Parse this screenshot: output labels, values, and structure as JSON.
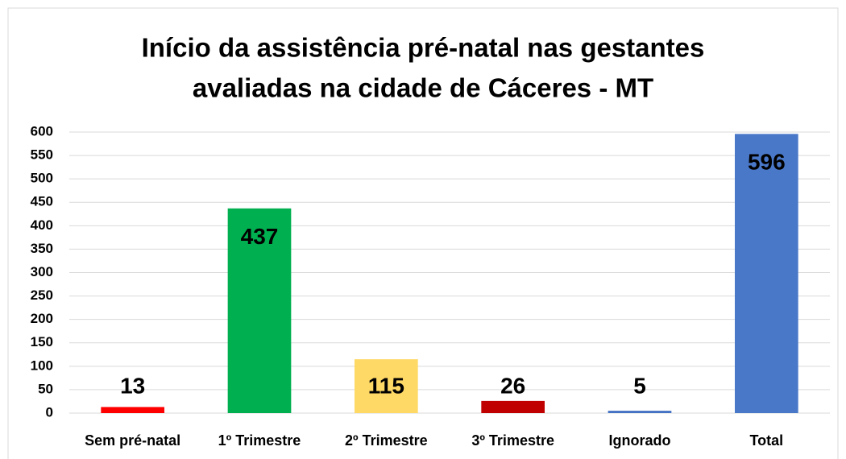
{
  "chart_data": {
    "type": "bar",
    "title": [
      "Início da assistência pré-natal nas gestantes",
      "avaliadas na cidade de Cáceres - MT"
    ],
    "categories": [
      "Sem pré-natal",
      "1º Trimestre",
      "2º Trimestre",
      "3º Trimestre",
      "Ignorado",
      "Total"
    ],
    "values": [
      13,
      437,
      115,
      26,
      5,
      596
    ],
    "colors": [
      "#ff0000",
      "#00b050",
      "#ffd966",
      "#c00000",
      "#4472c4",
      "#4a78c8"
    ],
    "ylim": [
      0,
      600
    ],
    "yticks": [
      0,
      50,
      100,
      150,
      200,
      250,
      300,
      350,
      400,
      450,
      500,
      550,
      600
    ],
    "grid": true
  }
}
